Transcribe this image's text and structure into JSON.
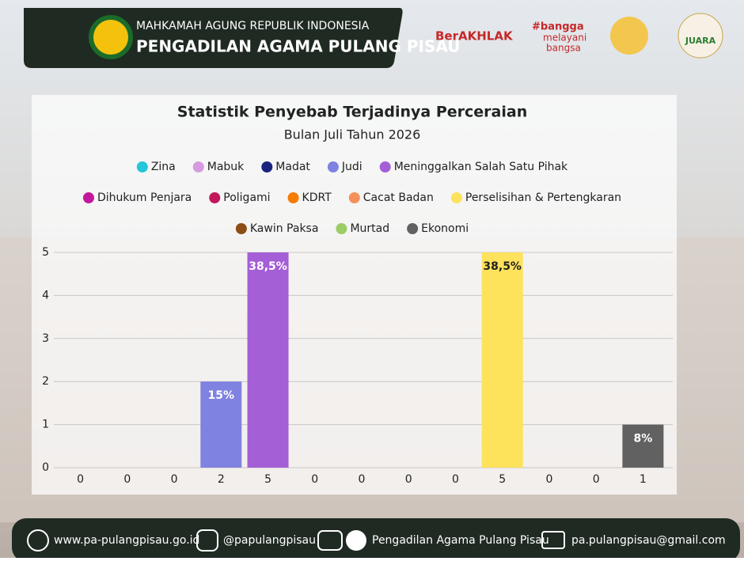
{
  "header": {
    "line1": "MAHKAMAH AGUNG REPUBLIK INDONESIA",
    "line2": "PENGADILAN AGAMA PULANG PISAU",
    "logos": [
      "BerAKHLAK",
      "#bangga",
      "melayani",
      "bangsa",
      "JUARA"
    ]
  },
  "chart_data": {
    "type": "bar",
    "title": "Statistik Penyebab Terjadinya Perceraian",
    "subtitle": "Bulan Juli Tahun 2026",
    "categories": [
      "Zina",
      "Mabuk",
      "Madat",
      "Judi",
      "Meninggalkan Salah Satu Pihak",
      "Dihukum Penjara",
      "Poligami",
      "KDRT",
      "Cacat Badan",
      "Perselisihan & Pertengkaran",
      "Kawin Paksa",
      "Murtad",
      "Ekonomi"
    ],
    "colors": [
      "#26c6da",
      "#d69be0",
      "#1a237e",
      "#7f82e0",
      "#a45ed6",
      "#c2189b",
      "#c2185b",
      "#f57c00",
      "#f4915a",
      "#fde25c",
      "#8d4e14",
      "#9ccc65",
      "#616161"
    ],
    "values": [
      0,
      0,
      0,
      2,
      5,
      0,
      0,
      0,
      0,
      5,
      0,
      0,
      1
    ],
    "percentages": [
      null,
      null,
      null,
      15,
      38.5,
      null,
      null,
      null,
      null,
      38.5,
      null,
      null,
      8
    ],
    "percentage_labels": [
      null,
      null,
      null,
      "15%",
      "38,5%",
      null,
      null,
      null,
      null,
      "38,5%",
      null,
      null,
      "8%"
    ],
    "ylim": [
      0,
      5
    ],
    "yticks": [
      0,
      1,
      2,
      3,
      4,
      5
    ],
    "grid": true
  },
  "footer": {
    "website": "www.pa-pulangpisau.go.id",
    "instagram": "@papulangpisau",
    "channel": "Pengadilan Agama Pulang Pisau",
    "email": "pa.pulangpisau@gmail.com"
  }
}
